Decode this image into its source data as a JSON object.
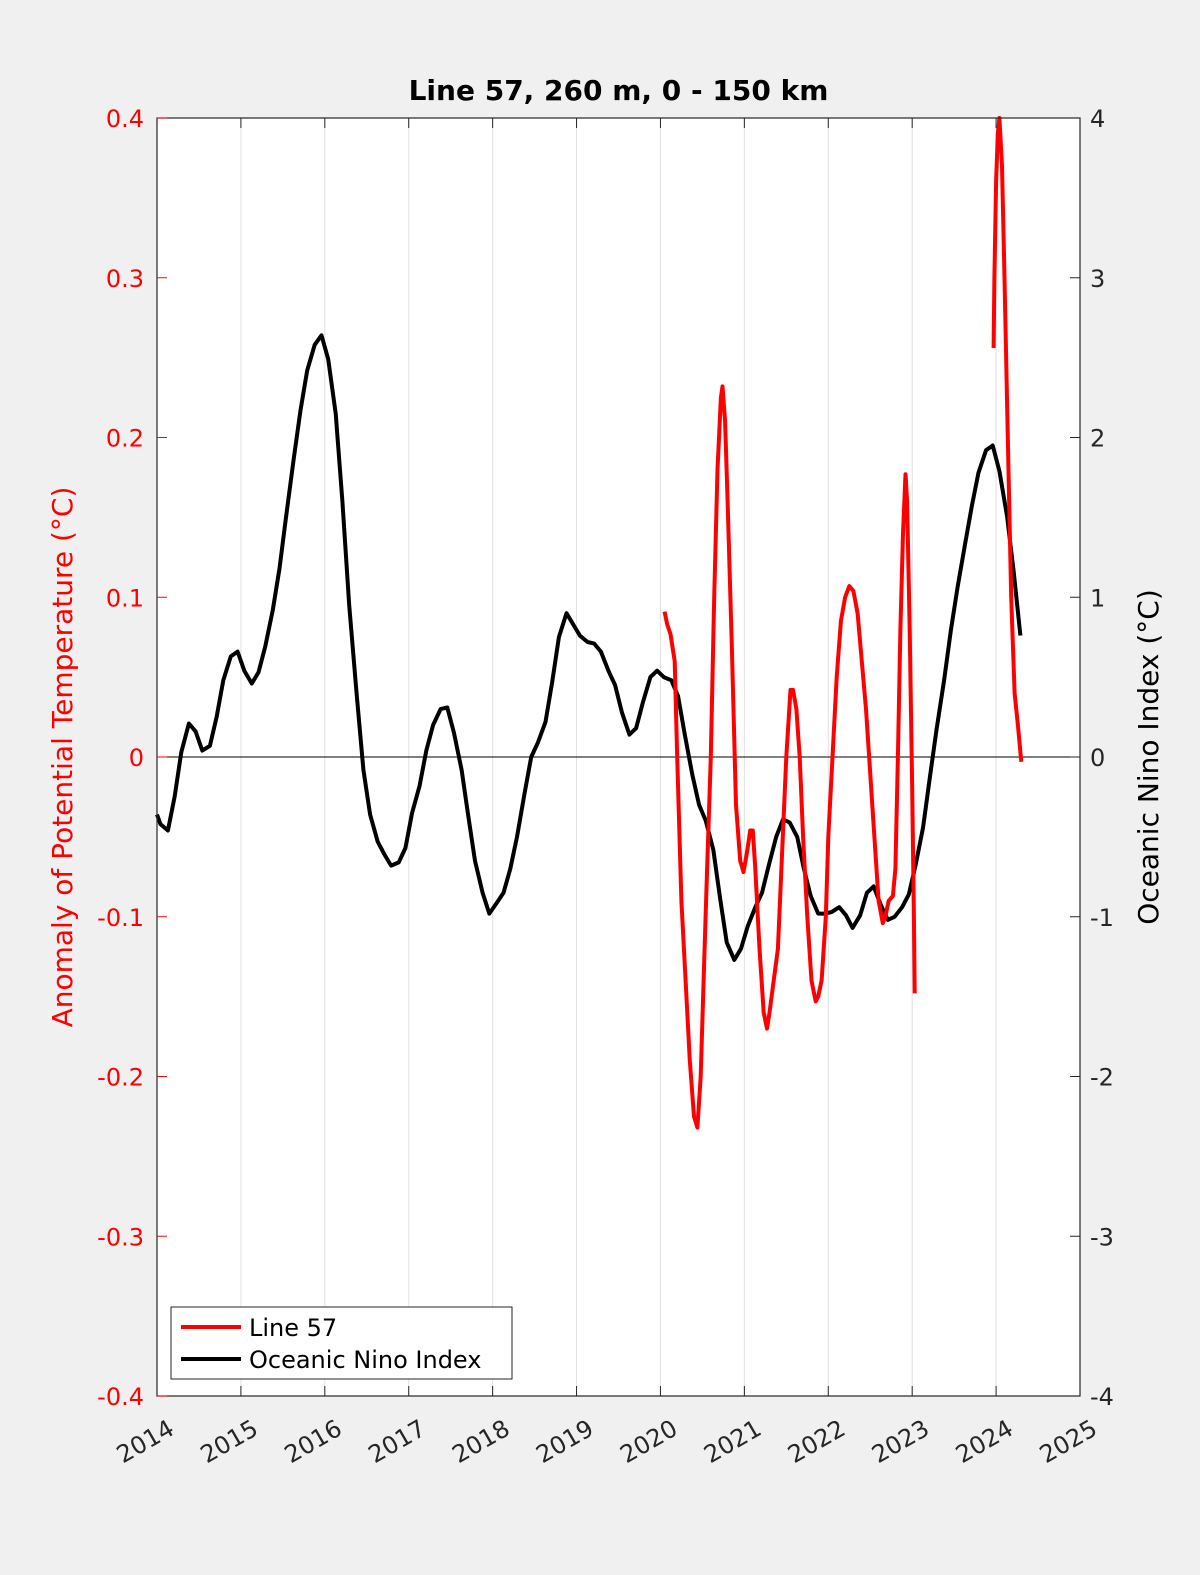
{
  "chart_data": {
    "type": "line",
    "title": "Line 57, 260 m, 0 - 150 km",
    "xlabel": "",
    "ylabel_left": "Anomaly of Potential Temperature (°C)",
    "ylabel_right": "Oceanic Nino Index (°C)",
    "xlim": [
      2014,
      2025
    ],
    "ylim_left": [
      -0.4,
      0.4
    ],
    "ylim_right": [
      -4,
      4
    ],
    "x_ticks": [
      "2014",
      "2015",
      "2016",
      "2017",
      "2018",
      "2019",
      "2020",
      "2021",
      "2022",
      "2023",
      "2024",
      "2025"
    ],
    "y_ticks_left": [
      "0.4",
      "0.3",
      "0.2",
      "0.1",
      "0",
      "-0.1",
      "-0.2",
      "-0.3",
      "-0.4"
    ],
    "y_ticks_right": [
      "4",
      "3",
      "2",
      "1",
      "0",
      "-1",
      "-2",
      "-3",
      "-4"
    ],
    "grid": "vertical",
    "legend_position": "bottom-left",
    "colors": {
      "left_axis": "#ff0000",
      "line57": "#ff0000",
      "oni": "#000000"
    },
    "series": [
      {
        "name": "Line 57",
        "axis": "left",
        "segments": [
          [
            [
              2020.05,
              0.091
            ],
            [
              2020.08,
              0.083
            ],
            [
              2020.12,
              0.077
            ],
            [
              2020.17,
              0.06
            ],
            [
              2020.2,
              0.0
            ],
            [
              2020.25,
              -0.09
            ],
            [
              2020.3,
              -0.14
            ],
            [
              2020.35,
              -0.19
            ],
            [
              2020.4,
              -0.225
            ],
            [
              2020.44,
              -0.232
            ],
            [
              2020.48,
              -0.2
            ],
            [
              2020.52,
              -0.13
            ],
            [
              2020.55,
              -0.08
            ],
            [
              2020.6,
              0.0
            ],
            [
              2020.64,
              0.1
            ],
            [
              2020.68,
              0.18
            ],
            [
              2020.72,
              0.225
            ],
            [
              2020.74,
              0.232
            ],
            [
              2020.77,
              0.21
            ],
            [
              2020.8,
              0.16
            ],
            [
              2020.85,
              0.07
            ],
            [
              2020.9,
              -0.03
            ],
            [
              2020.95,
              -0.065
            ],
            [
              2020.99,
              -0.072
            ],
            [
              2021.03,
              -0.06
            ],
            [
              2021.07,
              -0.046
            ],
            [
              2021.1,
              -0.046
            ],
            [
              2021.13,
              -0.07
            ],
            [
              2021.18,
              -0.12
            ],
            [
              2021.23,
              -0.16
            ],
            [
              2021.27,
              -0.17
            ],
            [
              2021.3,
              -0.16
            ],
            [
              2021.35,
              -0.14
            ],
            [
              2021.4,
              -0.12
            ],
            [
              2021.45,
              -0.06
            ],
            [
              2021.5,
              0.0
            ],
            [
              2021.55,
              0.042
            ],
            [
              2021.58,
              0.042
            ],
            [
              2021.62,
              0.03
            ],
            [
              2021.66,
              0.0
            ],
            [
              2021.7,
              -0.05
            ],
            [
              2021.75,
              -0.1
            ],
            [
              2021.8,
              -0.14
            ],
            [
              2021.85,
              -0.153
            ],
            [
              2021.88,
              -0.15
            ],
            [
              2021.92,
              -0.14
            ],
            [
              2021.97,
              -0.1
            ],
            [
              2022.0,
              -0.05
            ],
            [
              2022.05,
              0.0
            ],
            [
              2022.1,
              0.05
            ],
            [
              2022.15,
              0.085
            ],
            [
              2022.2,
              0.1
            ],
            [
              2022.25,
              0.107
            ],
            [
              2022.3,
              0.104
            ],
            [
              2022.35,
              0.09
            ],
            [
              2022.4,
              0.06
            ],
            [
              2022.45,
              0.03
            ],
            [
              2022.5,
              -0.01
            ],
            [
              2022.55,
              -0.05
            ],
            [
              2022.6,
              -0.09
            ],
            [
              2022.65,
              -0.104
            ],
            [
              2022.68,
              -0.1
            ],
            [
              2022.72,
              -0.09
            ],
            [
              2022.77,
              -0.087
            ],
            [
              2022.8,
              -0.07
            ],
            [
              2022.83,
              0.0
            ],
            [
              2022.86,
              0.08
            ],
            [
              2022.89,
              0.14
            ],
            [
              2022.92,
              0.177
            ],
            [
              2022.94,
              0.16
            ],
            [
              2022.97,
              0.08
            ],
            [
              2023.0,
              -0.02
            ],
            [
              2023.02,
              -0.1
            ],
            [
              2023.03,
              -0.148
            ]
          ],
          [
            [
              2023.97,
              0.256
            ],
            [
              2023.98,
              0.3
            ],
            [
              2024.0,
              0.36
            ],
            [
              2024.02,
              0.39
            ],
            [
              2024.04,
              0.4
            ],
            [
              2024.07,
              0.37
            ],
            [
              2024.1,
              0.3
            ],
            [
              2024.14,
              0.2
            ],
            [
              2024.18,
              0.1
            ],
            [
              2024.22,
              0.04
            ],
            [
              2024.26,
              0.02
            ],
            [
              2024.3,
              -0.003
            ]
          ]
        ]
      },
      {
        "name": "Oceanic Nino Index",
        "axis": "right",
        "segments": [
          [
            [
              2014.0,
              -0.36
            ],
            [
              2014.04,
              -0.42
            ],
            [
              2014.13,
              -0.46
            ],
            [
              2014.21,
              -0.25
            ],
            [
              2014.29,
              0.03
            ],
            [
              2014.38,
              0.21
            ],
            [
              2014.46,
              0.16
            ],
            [
              2014.54,
              0.04
            ],
            [
              2014.63,
              0.07
            ],
            [
              2014.71,
              0.25
            ],
            [
              2014.79,
              0.48
            ],
            [
              2014.88,
              0.63
            ],
            [
              2014.96,
              0.66
            ],
            [
              2015.04,
              0.54
            ],
            [
              2015.13,
              0.46
            ],
            [
              2015.21,
              0.53
            ],
            [
              2015.29,
              0.69
            ],
            [
              2015.38,
              0.92
            ],
            [
              2015.46,
              1.18
            ],
            [
              2015.54,
              1.51
            ],
            [
              2015.63,
              1.87
            ],
            [
              2015.71,
              2.17
            ],
            [
              2015.79,
              2.42
            ],
            [
              2015.88,
              2.58
            ],
            [
              2015.96,
              2.64
            ],
            [
              2016.04,
              2.49
            ],
            [
              2016.13,
              2.15
            ],
            [
              2016.21,
              1.6
            ],
            [
              2016.29,
              0.95
            ],
            [
              2016.38,
              0.39
            ],
            [
              2016.46,
              -0.08
            ],
            [
              2016.54,
              -0.36
            ],
            [
              2016.63,
              -0.53
            ],
            [
              2016.71,
              -0.61
            ],
            [
              2016.79,
              -0.68
            ],
            [
              2016.88,
              -0.66
            ],
            [
              2016.96,
              -0.57
            ],
            [
              2017.04,
              -0.35
            ],
            [
              2017.13,
              -0.18
            ],
            [
              2017.21,
              0.04
            ],
            [
              2017.29,
              0.2
            ],
            [
              2017.38,
              0.3
            ],
            [
              2017.46,
              0.31
            ],
            [
              2017.54,
              0.15
            ],
            [
              2017.63,
              -0.08
            ],
            [
              2017.71,
              -0.37
            ],
            [
              2017.79,
              -0.65
            ],
            [
              2017.88,
              -0.85
            ],
            [
              2017.96,
              -0.98
            ],
            [
              2018.04,
              -0.92
            ],
            [
              2018.13,
              -0.85
            ],
            [
              2018.21,
              -0.7
            ],
            [
              2018.29,
              -0.5
            ],
            [
              2018.38,
              -0.23
            ],
            [
              2018.46,
              0.0
            ],
            [
              2018.54,
              0.09
            ],
            [
              2018.63,
              0.22
            ],
            [
              2018.71,
              0.47
            ],
            [
              2018.79,
              0.75
            ],
            [
              2018.88,
              0.9
            ],
            [
              2018.96,
              0.83
            ],
            [
              2019.04,
              0.76
            ],
            [
              2019.13,
              0.72
            ],
            [
              2019.21,
              0.71
            ],
            [
              2019.29,
              0.66
            ],
            [
              2019.38,
              0.54
            ],
            [
              2019.46,
              0.45
            ],
            [
              2019.54,
              0.28
            ],
            [
              2019.63,
              0.14
            ],
            [
              2019.71,
              0.18
            ],
            [
              2019.79,
              0.34
            ],
            [
              2019.88,
              0.5
            ],
            [
              2019.96,
              0.54
            ],
            [
              2020.04,
              0.5
            ],
            [
              2020.13,
              0.48
            ],
            [
              2020.21,
              0.38
            ],
            [
              2020.29,
              0.14
            ],
            [
              2020.38,
              -0.11
            ],
            [
              2020.46,
              -0.3
            ],
            [
              2020.54,
              -0.4
            ],
            [
              2020.63,
              -0.58
            ],
            [
              2020.71,
              -0.88
            ],
            [
              2020.79,
              -1.16
            ],
            [
              2020.88,
              -1.27
            ],
            [
              2020.96,
              -1.2
            ],
            [
              2021.04,
              -1.06
            ],
            [
              2021.13,
              -0.94
            ],
            [
              2021.21,
              -0.85
            ],
            [
              2021.29,
              -0.68
            ],
            [
              2021.38,
              -0.5
            ],
            [
              2021.46,
              -0.39
            ],
            [
              2021.54,
              -0.41
            ],
            [
              2021.63,
              -0.5
            ],
            [
              2021.71,
              -0.7
            ],
            [
              2021.79,
              -0.87
            ],
            [
              2021.88,
              -0.98
            ],
            [
              2021.96,
              -0.98
            ],
            [
              2022.04,
              -0.97
            ],
            [
              2022.13,
              -0.94
            ],
            [
              2022.21,
              -0.99
            ],
            [
              2022.29,
              -1.07
            ],
            [
              2022.38,
              -0.99
            ],
            [
              2022.46,
              -0.85
            ],
            [
              2022.54,
              -0.81
            ],
            [
              2022.63,
              -0.93
            ],
            [
              2022.71,
              -1.02
            ],
            [
              2022.79,
              -1.0
            ],
            [
              2022.88,
              -0.94
            ],
            [
              2022.96,
              -0.86
            ],
            [
              2023.04,
              -0.68
            ],
            [
              2023.13,
              -0.44
            ],
            [
              2023.21,
              -0.13
            ],
            [
              2023.29,
              0.17
            ],
            [
              2023.38,
              0.48
            ],
            [
              2023.46,
              0.79
            ],
            [
              2023.54,
              1.06
            ],
            [
              2023.63,
              1.33
            ],
            [
              2023.71,
              1.57
            ],
            [
              2023.79,
              1.78
            ],
            [
              2023.88,
              1.92
            ],
            [
              2023.96,
              1.95
            ],
            [
              2024.04,
              1.79
            ],
            [
              2024.13,
              1.51
            ],
            [
              2024.21,
              1.16
            ],
            [
              2024.29,
              0.76
            ]
          ]
        ]
      }
    ]
  }
}
